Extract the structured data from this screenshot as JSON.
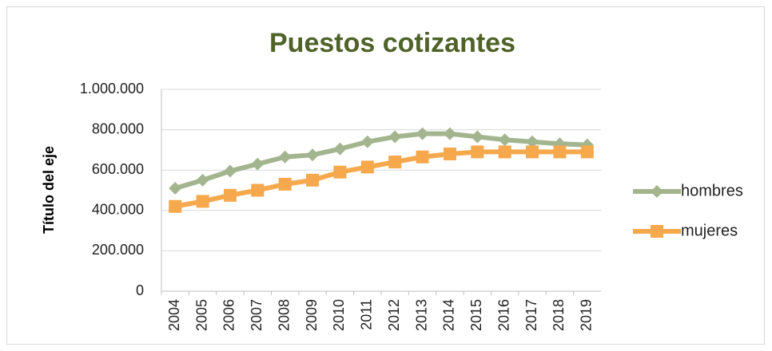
{
  "chart_data": {
    "type": "line",
    "title": "Puestos cotizantes",
    "y_label": "Título del eje",
    "categories": [
      "2004",
      "2005",
      "2006",
      "2007",
      "2008",
      "2009",
      "2010",
      "2011",
      "2012",
      "2013",
      "2014",
      "2015",
      "2016",
      "2017",
      "2018",
      "2019"
    ],
    "series": [
      {
        "name": "hombres",
        "color": "#a3b58e",
        "marker": "diamond",
        "values": [
          510000,
          550000,
          595000,
          630000,
          665000,
          675000,
          705000,
          740000,
          765000,
          780000,
          780000,
          765000,
          750000,
          740000,
          730000,
          725000
        ]
      },
      {
        "name": "mujeres",
        "color": "#f6a84c",
        "marker": "square",
        "values": [
          420000,
          445000,
          475000,
          500000,
          530000,
          550000,
          590000,
          615000,
          640000,
          665000,
          680000,
          690000,
          690000,
          690000,
          690000,
          690000
        ]
      }
    ],
    "ylim": [
      0,
      1000000
    ],
    "yticks": [
      0,
      {
        "value": 200000,
        "label": "200.000"
      },
      {
        "value": 400000,
        "label": "400.000"
      },
      {
        "value": 600000,
        "label": "600.000"
      },
      {
        "value": 800000,
        "label": "800.000"
      },
      {
        "value": 1000000,
        "label": "1.000.000"
      }
    ],
    "grid": true,
    "legend": "right"
  }
}
